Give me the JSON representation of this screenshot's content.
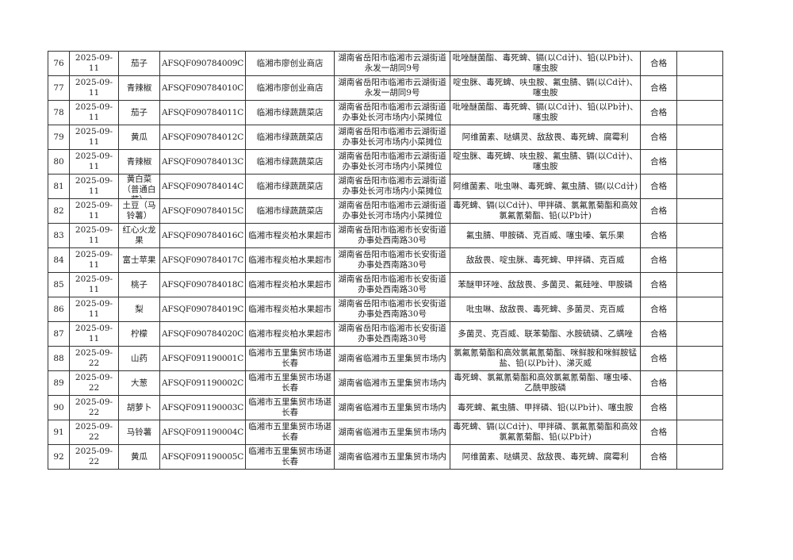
{
  "rows": [
    {
      "no": "76",
      "date": "2025-09-11",
      "name": "茄子",
      "code": "AFSQF090784009C",
      "store": "临湘市廖创业商店",
      "address": "湖南省岳阳市临湘市云湖街道永发一胡同9号",
      "items": "吡唑醚菌酯、毒死蜱、镉(以Cd计)、铅(以Pb计)、噻虫胺",
      "result": "合格",
      "note": ""
    },
    {
      "no": "77",
      "date": "2025-09-11",
      "name": "青辣椒",
      "code": "AFSQF090784010C",
      "store": "临湘市廖创业商店",
      "address": "湖南省岳阳市临湘市云湖街道永发一胡同9号",
      "items": "啶虫脒、毒死蜱、呋虫胺、氟虫腈、镉(以Cd计)、噻虫胺",
      "result": "合格",
      "note": ""
    },
    {
      "no": "78",
      "date": "2025-09-11",
      "name": "茄子",
      "code": "AFSQF090784011C",
      "store": "临湘市绿蔬蔬菜店",
      "address": "湖南省岳阳市临湘市云湖街道办事处长河市场内小菜摊位",
      "items": "吡唑醚菌酯、毒死蜱、镉(以Cd计)、铅(以Pb计)、噻虫胺",
      "result": "合格",
      "note": ""
    },
    {
      "no": "79",
      "date": "2025-09-11",
      "name": "黄瓜",
      "code": "AFSQF090784012C",
      "store": "临湘市绿蔬蔬菜店",
      "address": "湖南省岳阳市临湘市云湖街道办事处长河市场内小菜摊位",
      "items": "阿维菌素、哒螨灵、敌敌畏、毒死蜱、腐霉利",
      "result": "合格",
      "note": ""
    },
    {
      "no": "80",
      "date": "2025-09-11",
      "name": "青辣椒",
      "code": "AFSQF090784013C",
      "store": "临湘市绿蔬蔬菜店",
      "address": "湖南省岳阳市临湘市云湖街道办事处长河市场内小菜摊位",
      "items": "啶虫脒、毒死蜱、呋虫胺、氟虫腈、镉(以Cd计)、噻虫胺",
      "result": "合格",
      "note": ""
    },
    {
      "no": "81",
      "date": "2025-09-11",
      "name": "黄白菜（普通白菜）",
      "code": "AFSQF090784014C",
      "store": "临湘市绿蔬蔬菜店",
      "address": "湖南省岳阳市临湘市云湖街道办事处长河市场内小菜摊位",
      "items": "阿维菌素、吡虫啉、毒死蜱、氟虫腈、镉(以Cd计)",
      "result": "合格",
      "note": ""
    },
    {
      "no": "82",
      "date": "2025-09-11",
      "name": "土豆（马铃薯）",
      "code": "AFSQF090784015C",
      "store": "临湘市绿蔬蔬菜店",
      "address": "湖南省岳阳市临湘市云湖街道办事处长河市场内小菜摊位",
      "items": "毒死蜱、镉(以Cd计)、甲拌磷、氯氟氰菊酯和高效氯氟氰菊酯、铅(以Pb计)",
      "result": "合格",
      "note": ""
    },
    {
      "no": "83",
      "date": "2025-09-11",
      "name": "红心火龙果",
      "code": "AFSQF090784016C",
      "store": "临湘市程炎柏水果超市",
      "address": "湖南省岳阳市临湘市长安街道办事处西南路30号",
      "items": "氟虫腈、甲胺磷、克百威、噻虫嗪、氧乐果",
      "result": "合格",
      "note": ""
    },
    {
      "no": "84",
      "date": "2025-09-11",
      "name": "富士苹果",
      "code": "AFSQF090784017C",
      "store": "临湘市程炎柏水果超市",
      "address": "湖南省岳阳市临湘市长安街道办事处西南路30号",
      "items": "敌敌畏、啶虫脒、毒死蜱、甲拌磷、克百威",
      "result": "合格",
      "note": ""
    },
    {
      "no": "85",
      "date": "2025-09-11",
      "name": "桃子",
      "code": "AFSQF090784018C",
      "store": "临湘市程炎柏水果超市",
      "address": "湖南省岳阳市临湘市长安街道办事处西南路30号",
      "items": "苯醚甲环唑、敌敌畏、多菌灵、氟硅唑、甲胺磷",
      "result": "合格",
      "note": ""
    },
    {
      "no": "86",
      "date": "2025-09-11",
      "name": "梨",
      "code": "AFSQF090784019C",
      "store": "临湘市程炎柏水果超市",
      "address": "湖南省岳阳市临湘市长安街道办事处西南路30号",
      "items": "吡虫啉、敌敌畏、毒死蜱、多菌灵、克百威",
      "result": "合格",
      "note": ""
    },
    {
      "no": "87",
      "date": "2025-09-11",
      "name": "柠檬",
      "code": "AFSQF090784020C",
      "store": "临湘市程炎柏水果超市",
      "address": "湖南省岳阳市临湘市长安街道办事处西南路30号",
      "items": "多菌灵、克百威、联苯菊酯、水胺硫磷、乙螨唑",
      "result": "合格",
      "note": ""
    },
    {
      "no": "88",
      "date": "2025-09-22",
      "name": "山药",
      "code": "AFSQF091190001C",
      "store": "临湘市五里集贸市场谌长春",
      "address": "湖南省临湘市五里集贸市场内",
      "items": "氯氟氰菊酯和高效氯氟氰菊酯、咪鲜胺和咪鲜胺锰盐、铅(以Pb计)、涕灭威",
      "result": "合格",
      "note": ""
    },
    {
      "no": "89",
      "date": "2025-09-22",
      "name": "大葱",
      "code": "AFSQF091190002C",
      "store": "临湘市五里集贸市场谌长春",
      "address": "湖南省临湘市五里集贸市场内",
      "items": "毒死蜱、氯氟氰菊酯和高效氯氟氰菊酯、噻虫嗪、乙酰甲胺磷",
      "result": "合格",
      "note": ""
    },
    {
      "no": "90",
      "date": "2025-09-22",
      "name": "胡萝卜",
      "code": "AFSQF091190003C",
      "store": "临湘市五里集贸市场谌长春",
      "address": "湖南省临湘市五里集贸市场内",
      "items": "毒死蜱、氟虫腈、甲拌磷、铅(以Pb计)、噻虫胺",
      "result": "合格",
      "note": ""
    },
    {
      "no": "91",
      "date": "2025-09-22",
      "name": "马铃薯",
      "code": "AFSQF091190004C",
      "store": "临湘市五里集贸市场谌长春",
      "address": "湖南省临湘市五里集贸市场内",
      "items": "毒死蜱、镉(以Cd计)、甲拌磷、氯氟氰菊酯和高效氯氟氰菊酯、铅(以Pb计)",
      "result": "合格",
      "note": ""
    },
    {
      "no": "92",
      "date": "2025-09-22",
      "name": "黄瓜",
      "code": "AFSQF091190005C",
      "store": "临湘市五里集贸市场谌长春",
      "address": "湖南省临湘市五里集贸市场内",
      "items": "阿维菌素、哒螨灵、敌敌畏、毒死蜱、腐霉利",
      "result": "合格",
      "note": ""
    }
  ]
}
